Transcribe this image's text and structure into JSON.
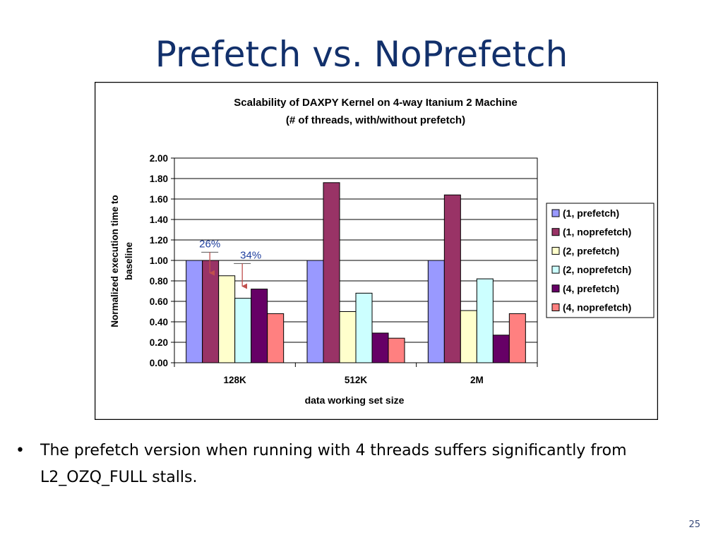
{
  "slide": {
    "title": "Prefetch vs. NoPrefetch",
    "bullet": "The prefetch version when running with 4 threads suffers significantly from L2_OZQ_FULL stalls.",
    "bullet_marker": "•",
    "page_number": "25"
  },
  "chart_data": {
    "type": "bar",
    "title_line1": "Scalability of DAXPY Kernel on 4-way Itanium 2 Machine",
    "title_line2": "(# of threads, with/without prefetch)",
    "xlabel": "data working set size",
    "ylabel_line1": "Normalized execution time to",
    "ylabel_line2": "baseline",
    "categories": [
      "128K",
      "512K",
      "2M"
    ],
    "ylim": [
      0,
      2.0
    ],
    "yticks": [
      "0.00",
      "0.20",
      "0.40",
      "0.60",
      "0.80",
      "1.00",
      "1.20",
      "1.40",
      "1.60",
      "1.80",
      "2.00"
    ],
    "grid": true,
    "legend_position": "right",
    "series": [
      {
        "name": "(1, prefetch)",
        "color": "#9999ff",
        "values": [
          1.0,
          1.0,
          1.0
        ]
      },
      {
        "name": "(1, noprefetch)",
        "color": "#993366",
        "values": [
          1.0,
          1.76,
          1.64
        ]
      },
      {
        "name": "(2, prefetch)",
        "color": "#ffffcc",
        "values": [
          0.85,
          0.5,
          0.51
        ]
      },
      {
        "name": "(2, noprefetch)",
        "color": "#ccffff",
        "values": [
          0.63,
          0.68,
          0.82
        ]
      },
      {
        "name": "(4, prefetch)",
        "color": "#660066",
        "values": [
          0.72,
          0.29,
          0.27
        ]
      },
      {
        "name": "(4, noprefetch)",
        "color": "#ff8080",
        "values": [
          0.48,
          0.24,
          0.48
        ]
      }
    ],
    "annotations": [
      {
        "text": "26%",
        "category": "128K",
        "from_series": 0,
        "to_series": 2
      },
      {
        "text": "34%",
        "category": "128K",
        "from_series": 2,
        "to_series": 4
      }
    ],
    "annotation_color": "#1f3f9e",
    "arrow_color": "#c0504d"
  }
}
